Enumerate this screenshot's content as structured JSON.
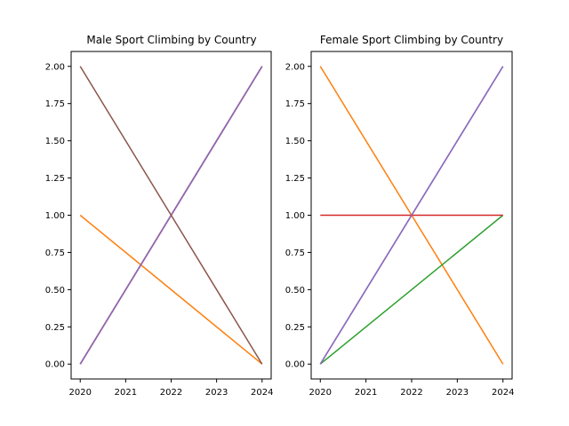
{
  "chart_data": [
    {
      "type": "line",
      "title": "Male Sport Climbing by Country",
      "xlabel": "",
      "ylabel": "",
      "x": [
        2020,
        2024
      ],
      "xticks": [
        "2020",
        "2021",
        "2022",
        "2023",
        "2024"
      ],
      "yticks": [
        "0.00",
        "0.25",
        "0.50",
        "0.75",
        "1.00",
        "1.25",
        "1.50",
        "1.75",
        "2.00"
      ],
      "xlim": [
        2019.8,
        2024.2
      ],
      "ylim": [
        -0.1,
        2.1
      ],
      "grid": false,
      "series": [
        {
          "color": "#1f77b4",
          "values": [
            0,
            2
          ]
        },
        {
          "color": "#ff7f0e",
          "values": [
            1,
            0
          ]
        },
        {
          "color": "#2ca02c",
          "values": [
            0,
            2
          ]
        },
        {
          "color": "#d62728",
          "values": [
            0,
            2
          ]
        },
        {
          "color": "#9467bd",
          "values": [
            0,
            2
          ]
        },
        {
          "color": "#8c564b",
          "values": [
            2,
            0
          ]
        }
      ]
    },
    {
      "type": "line",
      "title": "Female Sport Climbing by Country",
      "xlabel": "",
      "ylabel": "",
      "x": [
        2020,
        2024
      ],
      "xticks": [
        "2020",
        "2021",
        "2022",
        "2023",
        "2024"
      ],
      "yticks": [
        "0.00",
        "0.25",
        "0.50",
        "0.75",
        "1.00",
        "1.25",
        "1.50",
        "1.75",
        "2.00"
      ],
      "xlim": [
        2019.8,
        2024.2
      ],
      "ylim": [
        -0.1,
        2.1
      ],
      "grid": false,
      "series": [
        {
          "color": "#1f77b4",
          "values": [
            0,
            2
          ]
        },
        {
          "color": "#ff7f0e",
          "values": [
            2,
            0
          ]
        },
        {
          "color": "#2ca02c",
          "values": [
            0,
            1
          ]
        },
        {
          "color": "#d62728",
          "values": [
            1,
            1
          ]
        },
        {
          "color": "#9467bd",
          "values": [
            0,
            2
          ]
        }
      ]
    }
  ]
}
